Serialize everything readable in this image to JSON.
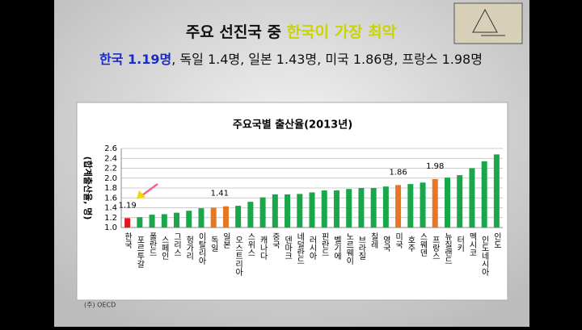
{
  "slide": {
    "title_plain": "주요 선진국 중 ",
    "title_highlight": "한국이 가장 최악",
    "subtitle_highlight": "한국 1.19명",
    "subtitle_rest": ", 독일 1.4명, 일본 1.43명, 미국 1.86명, 프랑스 1.98명",
    "footnote": "(주) OECD"
  },
  "chart_data": {
    "type": "bar",
    "title": "주요국별 출산율(2013년)",
    "y_label": "(합계출산율, 명)",
    "categories": [
      "한국",
      "포르투갈",
      "폴란드",
      "스페인",
      "그리스",
      "헝가리",
      "이탈리아",
      "독일",
      "일본",
      "오스트리아",
      "스위스",
      "캐나다",
      "중국",
      "덴마크",
      "네덜란드",
      "러시아",
      "핀란드",
      "벨기에",
      "노르웨이",
      "브라질",
      "칠레",
      "영국",
      "미국",
      "호주",
      "스웨덴",
      "프랑스",
      "뉴질랜드",
      "터키",
      "멕시코",
      "인도네시아",
      "인도"
    ],
    "values": [
      1.19,
      1.21,
      1.26,
      1.27,
      1.3,
      1.34,
      1.39,
      1.4,
      1.43,
      1.44,
      1.52,
      1.61,
      1.67,
      1.67,
      1.68,
      1.71,
      1.75,
      1.75,
      1.78,
      1.8,
      1.8,
      1.83,
      1.86,
      1.88,
      1.91,
      1.98,
      2.01,
      2.06,
      2.2,
      2.34,
      2.48
    ],
    "value_labels": [
      "1.19",
      null,
      null,
      null,
      null,
      null,
      null,
      null,
      null,
      null,
      null,
      null,
      null,
      null,
      null,
      null,
      null,
      null,
      null,
      null,
      null,
      null,
      "1.86",
      null,
      null,
      "1.98",
      null,
      null,
      null,
      null,
      null
    ],
    "colors": [
      "#e8141c",
      "#1aa64a",
      "#1aa64a",
      "#1aa64a",
      "#1aa64a",
      "#1aa64a",
      "#1aa64a",
      "#e87722",
      "#e87722",
      "#1aa64a",
      "#1aa64a",
      "#1aa64a",
      "#1aa64a",
      "#1aa64a",
      "#1aa64a",
      "#1aa64a",
      "#1aa64a",
      "#1aa64a",
      "#1aa64a",
      "#1aa64a",
      "#1aa64a",
      "#1aa64a",
      "#e87722",
      "#1aa64a",
      "#1aa64a",
      "#e87722",
      "#1aa64a",
      "#1aa64a",
      "#1aa64a",
      "#1aa64a",
      "#1aa64a"
    ],
    "annotation": "1.41",
    "ylim": [
      1.0,
      2.6
    ],
    "yticks": [
      {
        "value": 1.0,
        "label": "1.0"
      },
      1.2,
      1.4,
      1.6,
      1.8,
      {
        "value": 2.0,
        "label": "2.0"
      },
      2.2,
      2.4,
      2.6
    ],
    "grid": true
  }
}
